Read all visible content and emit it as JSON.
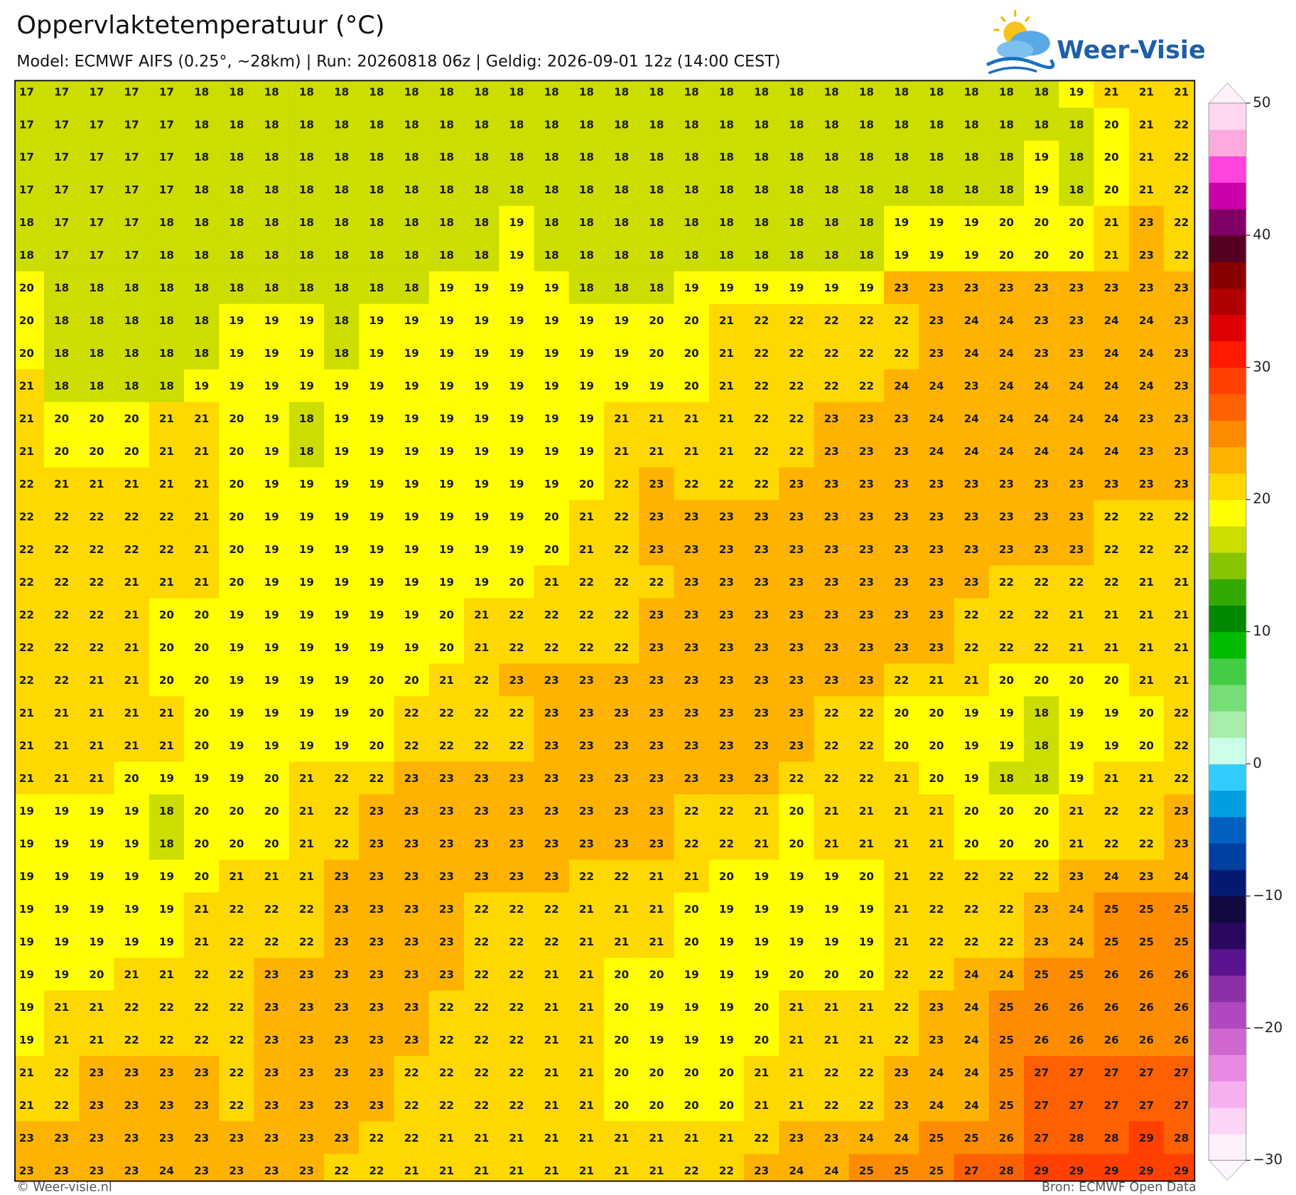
{
  "title": "Oppervlaktetemperatuur (°C)",
  "subtitle": "Model: ECMWF AIFS (0.25°, ~28km)  |  Run: 20260818 06z  |  Geldig: 2026-09-01 12z (14:00 CEST)",
  "logo": "Weer-Visie",
  "footer_left": "© Weer-visie.nl",
  "footer_right": "Bron: ECMWF Open Data",
  "grid": {
    "rows": [
      [
        17,
        17,
        17,
        17,
        17,
        18,
        18,
        18,
        18,
        18,
        18,
        18,
        18,
        18,
        18,
        18,
        18,
        18,
        18,
        18,
        18,
        18,
        18,
        18,
        18,
        18,
        18,
        18,
        18,
        18,
        19,
        21,
        21,
        21
      ],
      [
        17,
        17,
        17,
        17,
        17,
        18,
        18,
        18,
        18,
        18,
        18,
        18,
        18,
        18,
        18,
        18,
        18,
        18,
        18,
        18,
        18,
        18,
        18,
        18,
        18,
        18,
        18,
        18,
        18,
        18,
        18,
        20,
        21,
        22
      ],
      [
        17,
        17,
        17,
        17,
        17,
        18,
        18,
        18,
        18,
        18,
        18,
        18,
        18,
        18,
        18,
        18,
        18,
        18,
        18,
        18,
        18,
        18,
        18,
        18,
        18,
        18,
        18,
        18,
        18,
        19,
        18,
        20,
        21,
        22
      ],
      [
        17,
        17,
        17,
        17,
        17,
        18,
        18,
        18,
        18,
        18,
        18,
        18,
        18,
        18,
        18,
        18,
        18,
        18,
        18,
        18,
        18,
        18,
        18,
        18,
        18,
        18,
        18,
        18,
        18,
        19,
        18,
        20,
        21,
        22
      ],
      [
        18,
        17,
        17,
        17,
        18,
        18,
        18,
        18,
        18,
        18,
        18,
        18,
        18,
        18,
        19,
        18,
        18,
        18,
        18,
        18,
        18,
        18,
        18,
        18,
        18,
        19,
        19,
        19,
        20,
        20,
        20,
        21,
        23,
        22
      ],
      [
        18,
        17,
        17,
        17,
        18,
        18,
        18,
        18,
        18,
        18,
        18,
        18,
        18,
        18,
        19,
        18,
        18,
        18,
        18,
        18,
        18,
        18,
        18,
        18,
        18,
        19,
        19,
        19,
        20,
        20,
        20,
        21,
        23,
        22
      ],
      [
        20,
        18,
        18,
        18,
        18,
        18,
        18,
        18,
        18,
        18,
        18,
        18,
        19,
        19,
        19,
        19,
        18,
        18,
        18,
        19,
        19,
        19,
        19,
        19,
        19,
        23,
        23,
        23,
        23,
        23,
        23,
        23,
        23,
        23
      ],
      [
        20,
        18,
        18,
        18,
        18,
        18,
        19,
        19,
        19,
        18,
        19,
        19,
        19,
        19,
        19,
        19,
        19,
        19,
        20,
        20,
        21,
        22,
        22,
        22,
        22,
        22,
        23,
        24,
        24,
        23,
        23,
        24,
        24,
        23
      ],
      [
        20,
        18,
        18,
        18,
        18,
        18,
        19,
        19,
        19,
        18,
        19,
        19,
        19,
        19,
        19,
        19,
        19,
        19,
        20,
        20,
        21,
        22,
        22,
        22,
        22,
        22,
        23,
        24,
        24,
        23,
        23,
        24,
        24,
        23
      ],
      [
        21,
        18,
        18,
        18,
        18,
        19,
        19,
        19,
        19,
        19,
        19,
        19,
        19,
        19,
        19,
        19,
        19,
        19,
        19,
        20,
        21,
        22,
        22,
        22,
        22,
        24,
        24,
        23,
        24,
        24,
        24,
        24,
        24,
        23
      ],
      [
        21,
        20,
        20,
        20,
        21,
        21,
        20,
        19,
        18,
        19,
        19,
        19,
        19,
        19,
        19,
        19,
        19,
        21,
        21,
        21,
        21,
        22,
        22,
        23,
        23,
        23,
        24,
        24,
        24,
        24,
        24,
        24,
        23,
        23
      ],
      [
        21,
        20,
        20,
        20,
        21,
        21,
        20,
        19,
        18,
        19,
        19,
        19,
        19,
        19,
        19,
        19,
        19,
        21,
        21,
        21,
        21,
        22,
        22,
        23,
        23,
        23,
        24,
        24,
        24,
        24,
        24,
        24,
        23,
        23
      ],
      [
        22,
        21,
        21,
        21,
        21,
        21,
        20,
        19,
        19,
        19,
        19,
        19,
        19,
        19,
        19,
        19,
        20,
        22,
        23,
        22,
        22,
        22,
        23,
        23,
        23,
        23,
        23,
        23,
        23,
        23,
        23,
        23,
        23,
        23
      ],
      [
        22,
        22,
        22,
        22,
        22,
        21,
        20,
        19,
        19,
        19,
        19,
        19,
        19,
        19,
        19,
        20,
        21,
        22,
        23,
        23,
        23,
        23,
        23,
        23,
        23,
        23,
        23,
        23,
        23,
        23,
        23,
        22,
        22,
        22
      ],
      [
        22,
        22,
        22,
        22,
        22,
        21,
        20,
        19,
        19,
        19,
        19,
        19,
        19,
        19,
        19,
        20,
        21,
        22,
        23,
        23,
        23,
        23,
        23,
        23,
        23,
        23,
        23,
        23,
        23,
        23,
        23,
        22,
        22,
        22
      ],
      [
        22,
        22,
        22,
        21,
        21,
        21,
        20,
        19,
        19,
        19,
        19,
        19,
        19,
        19,
        20,
        21,
        22,
        22,
        22,
        23,
        23,
        23,
        23,
        23,
        23,
        23,
        23,
        23,
        22,
        22,
        22,
        22,
        21,
        21
      ],
      [
        22,
        22,
        22,
        21,
        20,
        20,
        19,
        19,
        19,
        19,
        19,
        19,
        20,
        21,
        22,
        22,
        22,
        22,
        23,
        23,
        23,
        23,
        23,
        23,
        23,
        23,
        23,
        22,
        22,
        22,
        21,
        21,
        21,
        21
      ],
      [
        22,
        22,
        22,
        21,
        20,
        20,
        19,
        19,
        19,
        19,
        19,
        19,
        20,
        21,
        22,
        22,
        22,
        22,
        23,
        23,
        23,
        23,
        23,
        23,
        23,
        23,
        23,
        22,
        22,
        22,
        21,
        21,
        21,
        21
      ],
      [
        22,
        22,
        21,
        21,
        20,
        20,
        19,
        19,
        19,
        19,
        20,
        20,
        21,
        22,
        23,
        23,
        23,
        23,
        23,
        23,
        23,
        23,
        23,
        23,
        23,
        22,
        21,
        21,
        20,
        20,
        20,
        20,
        21,
        21
      ],
      [
        21,
        21,
        21,
        21,
        21,
        20,
        19,
        19,
        19,
        19,
        20,
        22,
        22,
        22,
        22,
        23,
        23,
        23,
        23,
        23,
        23,
        23,
        23,
        22,
        22,
        20,
        20,
        19,
        19,
        18,
        19,
        19,
        20,
        22
      ],
      [
        21,
        21,
        21,
        21,
        21,
        20,
        19,
        19,
        19,
        19,
        20,
        22,
        22,
        22,
        22,
        23,
        23,
        23,
        23,
        23,
        23,
        23,
        23,
        22,
        22,
        20,
        20,
        19,
        19,
        18,
        19,
        19,
        20,
        22
      ],
      [
        21,
        21,
        21,
        20,
        19,
        19,
        19,
        20,
        21,
        22,
        22,
        23,
        23,
        23,
        23,
        23,
        23,
        23,
        23,
        23,
        23,
        23,
        22,
        22,
        22,
        21,
        20,
        19,
        18,
        18,
        19,
        21,
        21,
        22
      ],
      [
        19,
        19,
        19,
        19,
        18,
        20,
        20,
        20,
        21,
        22,
        23,
        23,
        23,
        23,
        23,
        23,
        23,
        23,
        23,
        22,
        22,
        21,
        20,
        21,
        21,
        21,
        21,
        20,
        20,
        20,
        21,
        22,
        22,
        23
      ],
      [
        19,
        19,
        19,
        19,
        18,
        20,
        20,
        20,
        21,
        22,
        23,
        23,
        23,
        23,
        23,
        23,
        23,
        23,
        23,
        22,
        22,
        21,
        20,
        21,
        21,
        21,
        21,
        20,
        20,
        20,
        21,
        22,
        22,
        23
      ],
      [
        19,
        19,
        19,
        19,
        19,
        20,
        21,
        21,
        21,
        23,
        23,
        23,
        23,
        23,
        23,
        23,
        22,
        22,
        21,
        21,
        20,
        19,
        19,
        19,
        20,
        21,
        22,
        22,
        22,
        22,
        23,
        24,
        23,
        24
      ],
      [
        19,
        19,
        19,
        19,
        19,
        21,
        22,
        22,
        22,
        23,
        23,
        23,
        23,
        22,
        22,
        22,
        21,
        21,
        21,
        20,
        19,
        19,
        19,
        19,
        19,
        21,
        22,
        22,
        22,
        23,
        24,
        25,
        25,
        25
      ],
      [
        19,
        19,
        19,
        19,
        19,
        21,
        22,
        22,
        22,
        23,
        23,
        23,
        23,
        22,
        22,
        22,
        21,
        21,
        21,
        20,
        19,
        19,
        19,
        19,
        19,
        21,
        22,
        22,
        22,
        23,
        24,
        25,
        25,
        25
      ],
      [
        19,
        19,
        20,
        21,
        21,
        22,
        22,
        23,
        23,
        23,
        23,
        23,
        23,
        22,
        22,
        21,
        21,
        20,
        20,
        19,
        19,
        19,
        20,
        20,
        20,
        22,
        22,
        24,
        24,
        25,
        25,
        26,
        26,
        26
      ],
      [
        19,
        21,
        21,
        22,
        22,
        22,
        22,
        23,
        23,
        23,
        23,
        23,
        22,
        22,
        22,
        21,
        21,
        20,
        19,
        19,
        19,
        20,
        21,
        21,
        21,
        22,
        23,
        24,
        25,
        26,
        26,
        26,
        26,
        26
      ],
      [
        19,
        21,
        21,
        22,
        22,
        22,
        22,
        23,
        23,
        23,
        23,
        23,
        22,
        22,
        22,
        21,
        21,
        20,
        19,
        19,
        19,
        20,
        21,
        21,
        21,
        22,
        23,
        24,
        25,
        26,
        26,
        26,
        26,
        26
      ],
      [
        21,
        22,
        23,
        23,
        23,
        23,
        22,
        23,
        23,
        23,
        23,
        22,
        22,
        22,
        22,
        21,
        21,
        20,
        20,
        20,
        20,
        21,
        21,
        22,
        22,
        23,
        24,
        24,
        25,
        27,
        27,
        27,
        27,
        27
      ],
      [
        21,
        22,
        23,
        23,
        23,
        23,
        22,
        23,
        23,
        23,
        23,
        22,
        22,
        22,
        22,
        21,
        21,
        20,
        20,
        20,
        20,
        21,
        21,
        22,
        22,
        23,
        24,
        24,
        25,
        27,
        27,
        27,
        27,
        27
      ],
      [
        23,
        23,
        23,
        23,
        23,
        23,
        23,
        23,
        23,
        23,
        22,
        22,
        21,
        21,
        21,
        21,
        21,
        21,
        21,
        21,
        21,
        22,
        23,
        23,
        24,
        24,
        25,
        25,
        26,
        27,
        28,
        28,
        29,
        28
      ],
      [
        23,
        23,
        23,
        23,
        24,
        23,
        23,
        23,
        23,
        22,
        22,
        21,
        21,
        21,
        21,
        21,
        21,
        21,
        21,
        22,
        22,
        23,
        24,
        24,
        25,
        25,
        25,
        27,
        28,
        29,
        29,
        29,
        29,
        29
      ]
    ]
  },
  "colorbar": {
    "clim": [
      -30,
      50
    ],
    "ticks": [
      50,
      40,
      30,
      20,
      10,
      0,
      {
        "value": -10,
        "label": "−10"
      },
      {
        "value": -20,
        "label": "−20"
      },
      {
        "value": -30,
        "label": "−30"
      }
    ],
    "colors": [
      "#fdf0fb",
      "#fcd4f6",
      "#f7b0ef",
      "#e88ae4",
      "#d066d0",
      "#b048c0",
      "#8c30a8",
      "#5a1490",
      "#2a0860",
      "#140840",
      "#041a70",
      "#0040a0",
      "#0060c0",
      "#00a0e0",
      "#33ccff",
      "#ccffe8",
      "#a8eeaa",
      "#77dd77",
      "#44cc44",
      "#00bb00",
      "#008800",
      "#33aa00",
      "#88c400",
      "#ccdd00",
      "#ffff00",
      "#ffd800",
      "#ffb300",
      "#ff8c00",
      "#ff6000",
      "#ff4000",
      "#ff1a00",
      "#dd0000",
      "#b00000",
      "#880000",
      "#550022",
      "#800066",
      "#cc00aa",
      "#ff44dd",
      "#ffaadd",
      "#ffd6f0"
    ]
  }
}
